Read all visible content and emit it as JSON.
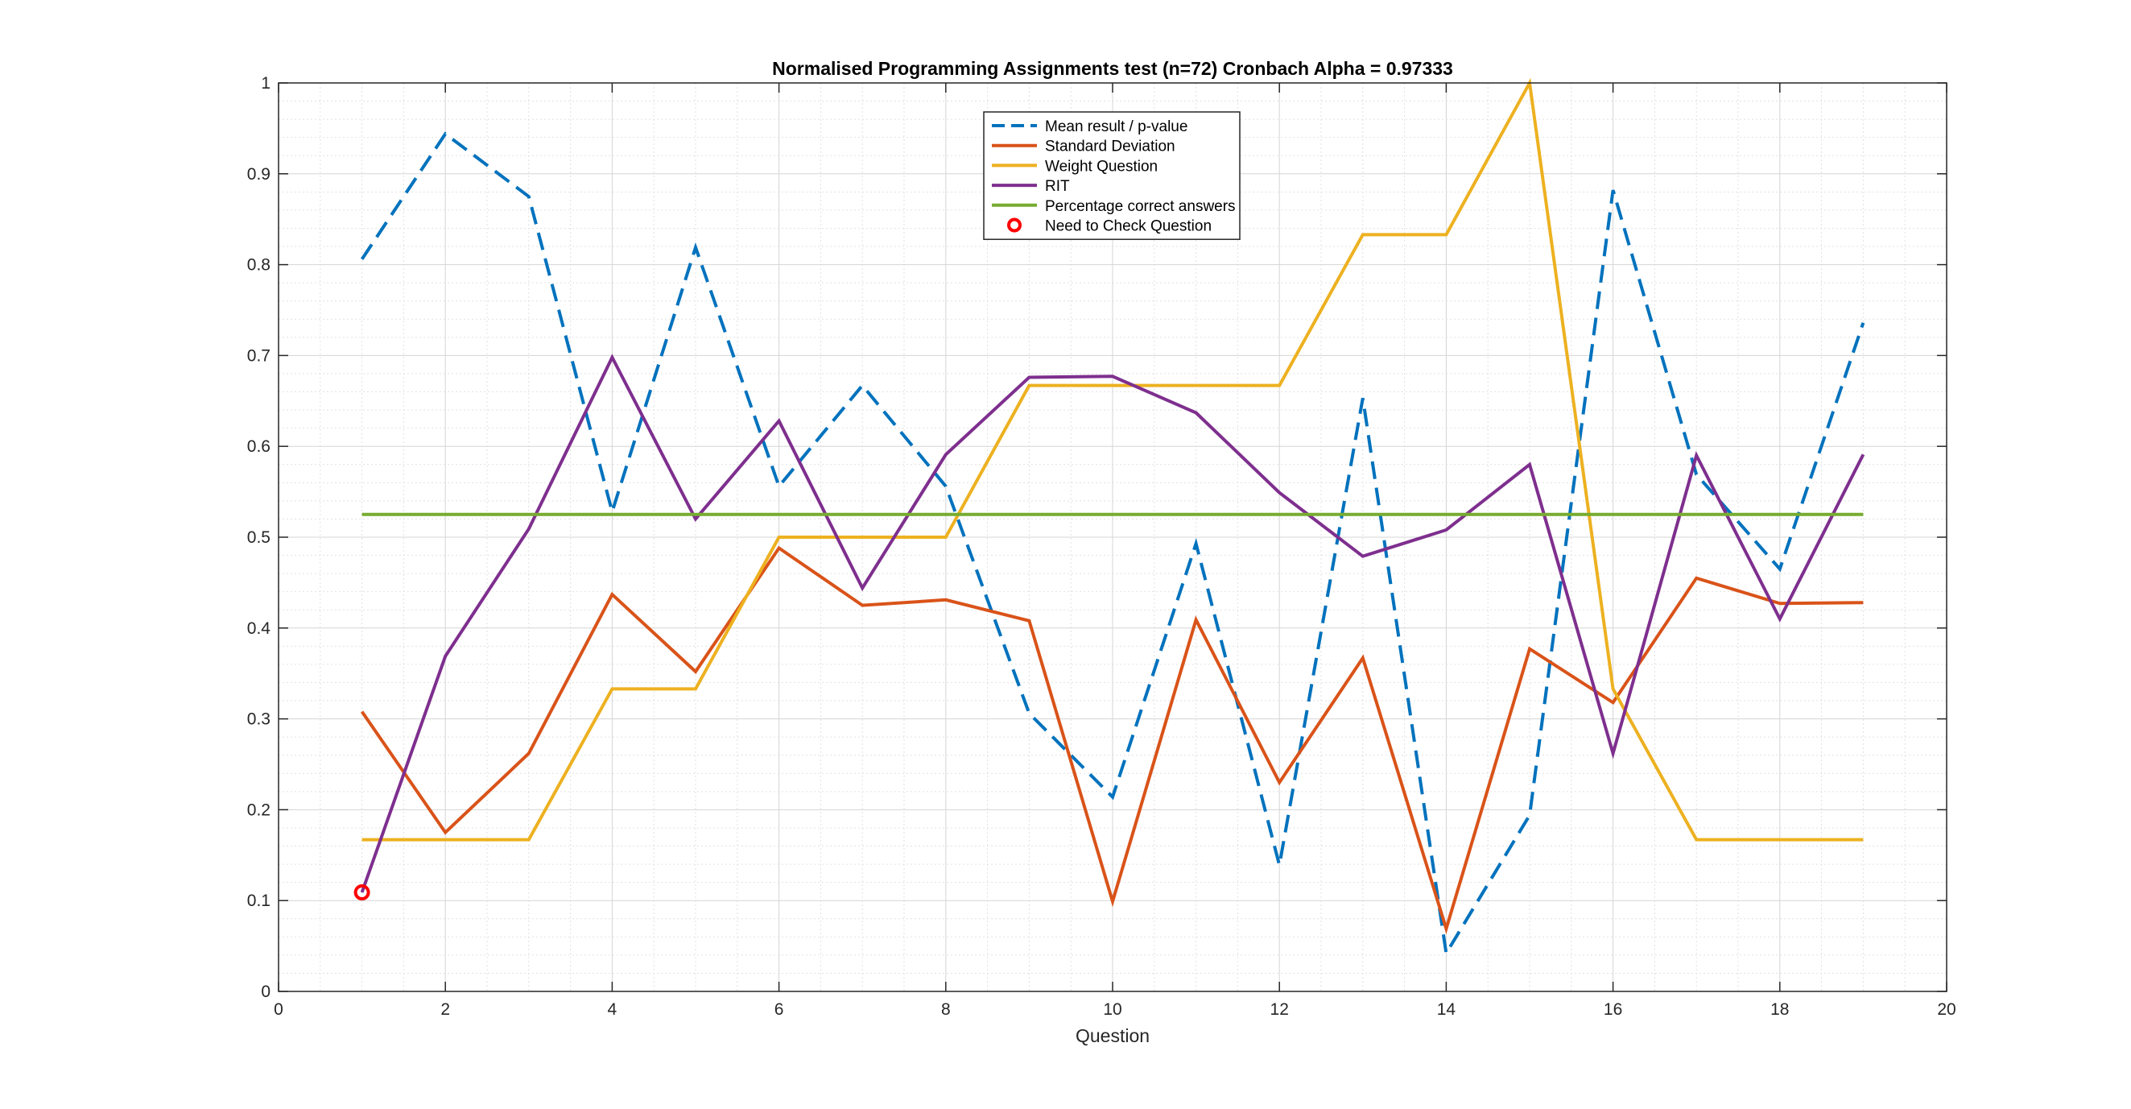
{
  "chart_data": {
    "type": "line",
    "title": "Normalised Programming Assignments test (n=72) Cronbach Alpha = 0.97333",
    "xlabel": "Question",
    "ylabel": "",
    "xlim": [
      0,
      20
    ],
    "ylim": [
      0,
      1
    ],
    "xticks": [
      0,
      2,
      4,
      6,
      8,
      10,
      12,
      14,
      16,
      18,
      20
    ],
    "yticks": [
      0,
      0.1,
      0.2,
      0.3,
      0.4,
      0.5,
      0.6,
      0.7,
      0.8,
      0.9,
      1
    ],
    "grid": true,
    "minor_grid": true,
    "legend_position": "top-center",
    "x": [
      1,
      2,
      3,
      4,
      5,
      6,
      7,
      8,
      9,
      10,
      11,
      12,
      13,
      14,
      15,
      16,
      17,
      18,
      19
    ],
    "series": [
      {
        "name": "Mean result / p-value",
        "color": "#0072BD",
        "style": "dashed",
        "values": [
          0.806,
          0.944,
          0.875,
          0.528,
          0.819,
          0.556,
          0.667,
          0.556,
          0.306,
          0.214,
          0.493,
          0.139,
          0.653,
          0.042,
          0.194,
          0.882,
          0.569,
          0.465,
          0.736
        ]
      },
      {
        "name": "Standard Deviation",
        "color": "#D95319",
        "style": "solid",
        "values": [
          0.308,
          0.175,
          0.262,
          0.437,
          0.352,
          0.488,
          0.425,
          0.431,
          0.408,
          0.099,
          0.409,
          0.23,
          0.367,
          0.069,
          0.377,
          0.318,
          0.455,
          0.427,
          0.428
        ]
      },
      {
        "name": "Weight Question",
        "color": "#EDB120",
        "style": "solid",
        "values": [
          0.167,
          0.167,
          0.167,
          0.333,
          0.333,
          0.5,
          0.5,
          0.5,
          0.667,
          0.667,
          0.667,
          0.667,
          0.833,
          0.833,
          1.0,
          0.333,
          0.167,
          0.167,
          0.167
        ]
      },
      {
        "name": "RIT",
        "color": "#7E2F8E",
        "style": "solid",
        "values": [
          0.109,
          0.369,
          0.509,
          0.698,
          0.52,
          0.628,
          0.444,
          0.591,
          0.676,
          0.677,
          0.637,
          0.549,
          0.479,
          0.508,
          0.58,
          0.262,
          0.59,
          0.41,
          0.591
        ]
      },
      {
        "name": "Percentage correct answers",
        "color": "#77AC30",
        "style": "solid",
        "values": [
          0.525,
          0.525,
          0.525,
          0.525,
          0.525,
          0.525,
          0.525,
          0.525,
          0.525,
          0.525,
          0.525,
          0.525,
          0.525,
          0.525,
          0.525,
          0.525,
          0.525,
          0.525,
          0.525
        ]
      }
    ],
    "markers": {
      "name": "Need to Check Question",
      "color": "#FF0000",
      "shape": "circle",
      "points": [
        {
          "x": 1,
          "y": 0.109
        }
      ]
    }
  }
}
